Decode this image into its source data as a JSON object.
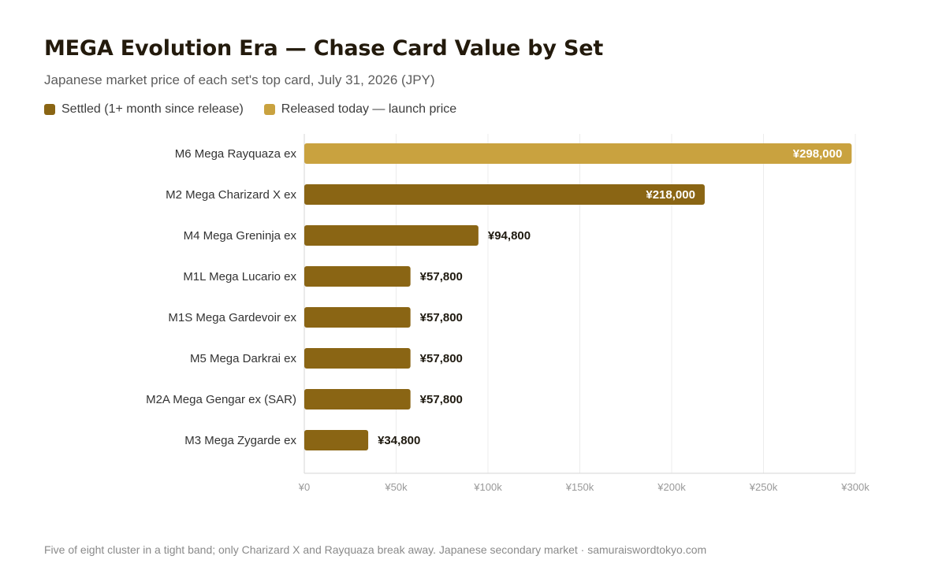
{
  "title": "MEGA Evolution Era — Chase Card Value by Set",
  "subtitle": "Japanese market price of each set's top card, July 31, 2026 (JPY)",
  "legend": [
    {
      "label": "Settled (1+ month since release)",
      "color": "#8a6514"
    },
    {
      "label": "Released today — launch price",
      "color": "#c9a23f"
    }
  ],
  "footer": "Five of eight cluster in a tight band; only Charizard X and Rayquaza break away. Japanese secondary market · samuraiswordtokyo.com",
  "chart_data": {
    "type": "bar",
    "orientation": "horizontal",
    "categories": [
      "M6 Mega Rayquaza ex",
      "M2 Mega Charizard X ex",
      "M4 Mega Greninja ex",
      "M1L Mega Lucario ex",
      "M1S Mega Gardevoir ex",
      "M5 Mega Darkrai ex",
      "M2A Mega Gengar ex (SAR)",
      "M3 Mega Zygarde ex"
    ],
    "values": [
      298000,
      218000,
      94800,
      57800,
      57800,
      57800,
      57800,
      34800
    ],
    "value_labels": [
      "¥298,000",
      "¥218,000",
      "¥94,800",
      "¥57,800",
      "¥57,800",
      "¥57,800",
      "¥57,800",
      "¥34,800"
    ],
    "status": [
      "launch",
      "settled",
      "settled",
      "settled",
      "settled",
      "settled",
      "settled",
      "settled"
    ],
    "colors": {
      "settled": "#8a6514",
      "launch": "#c9a23f"
    },
    "xlim": [
      0,
      300000
    ],
    "xticks": [
      0,
      50000,
      100000,
      150000,
      200000,
      250000,
      300000
    ],
    "xtick_labels": [
      "¥0",
      "¥50k",
      "¥100k",
      "¥150k",
      "¥200k",
      "¥250k",
      "¥300k"
    ],
    "grid": true,
    "legend_position": "top-left"
  }
}
